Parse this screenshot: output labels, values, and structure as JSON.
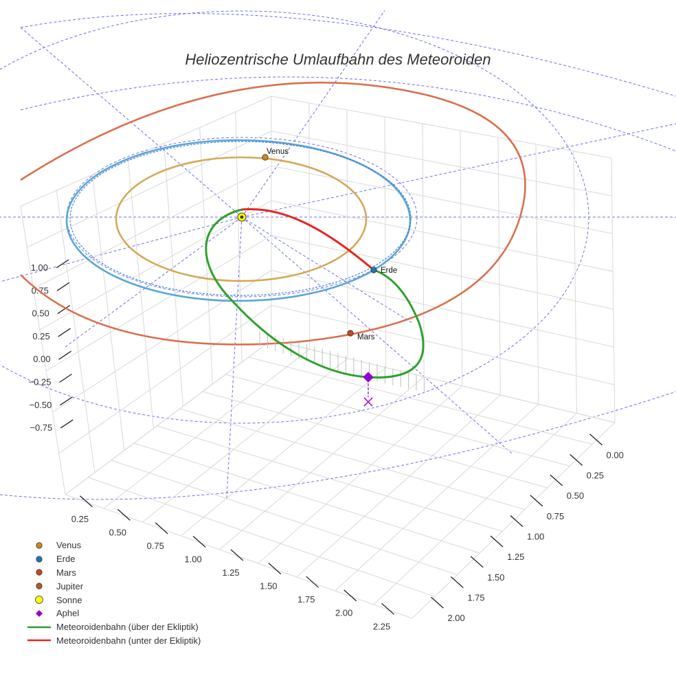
{
  "chart_data": {
    "type": "scatter3d",
    "title": "Heliozentrische Umlaufbahn des Meteoroiden",
    "axes": {
      "z_ticks": [
        "1.00",
        "0.75",
        "0.50",
        "0.25",
        "0.00",
        "−0.25",
        "−0.50",
        "−0.75"
      ],
      "x_ticks": [
        "0.25",
        "0.50",
        "0.75",
        "1.00",
        "1.25",
        "1.50",
        "1.75",
        "2.00",
        "2.25"
      ],
      "y_ticks": [
        "0.00",
        "0.25",
        "0.50",
        "0.75",
        "1.00",
        "1.25",
        "1.50",
        "1.75",
        "2.00"
      ],
      "grid": true
    },
    "bodies": [
      {
        "name": "Venus",
        "color": "#d2861c",
        "orbit_color": "#d4a855",
        "label": "Venus"
      },
      {
        "name": "Erde",
        "color": "#1f77b4",
        "orbit_color": "#3f8fd0",
        "label": "Erde"
      },
      {
        "name": "Mars",
        "color": "#c6491e",
        "orbit_color": "#d96f4e",
        "label": "Mars"
      },
      {
        "name": "Jupiter",
        "color": "#b35a2a"
      }
    ],
    "sun": {
      "name": "Sonne",
      "color": "#ffff00"
    },
    "aphel": {
      "name": "Aphel",
      "color": "#9400d3"
    },
    "meteoroid": {
      "above": {
        "name": "Meteoroidenbahn (über der Ekliptik)",
        "color": "#2ca02c"
      },
      "below": {
        "name": "Meteoroidenbahn (unter der Ekliptik)",
        "color": "#e8241f"
      }
    },
    "legend": [
      {
        "label": "Venus",
        "symbol": "dot",
        "color": "#d2861c"
      },
      {
        "label": "Erde",
        "symbol": "dot",
        "color": "#1f77b4"
      },
      {
        "label": "Mars",
        "symbol": "dot",
        "color": "#c6491e"
      },
      {
        "label": "Jupiter",
        "symbol": "dot",
        "color": "#b35a2a"
      },
      {
        "label": "Sonne",
        "symbol": "sun",
        "color": "#ffff00"
      },
      {
        "label": "Aphel",
        "symbol": "diamond",
        "color": "#9400d3"
      },
      {
        "label": "Meteoroidenbahn (über der Ekliptik)",
        "symbol": "line",
        "color": "#2ca02c"
      },
      {
        "label": "Meteoroidenbahn (unter der Ekliptik)",
        "symbol": "line",
        "color": "#e8241f"
      }
    ],
    "legend_position": "bottom-left"
  }
}
